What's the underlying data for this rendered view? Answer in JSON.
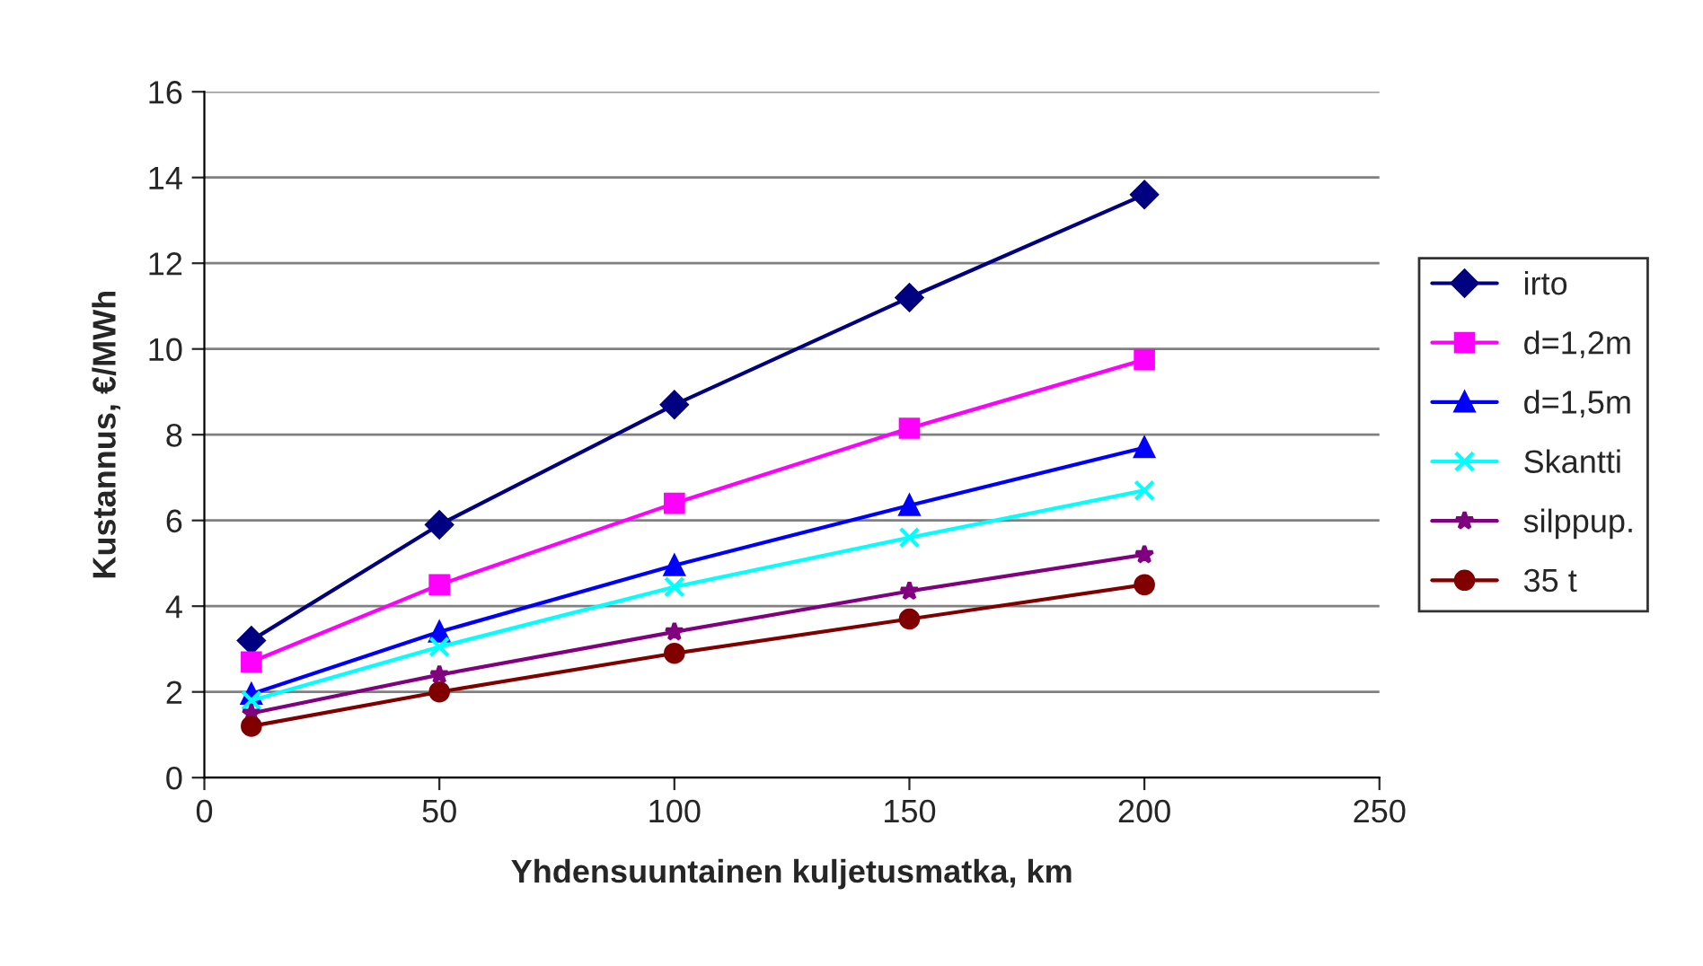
{
  "chart_data": {
    "type": "line",
    "xlabel": "Yhdensuuntainen kuljetusmatka, km",
    "ylabel": "Kustannus, €/MWh",
    "x": [
      10,
      50,
      100,
      150,
      200
    ],
    "series": [
      {
        "name": "irto",
        "color": "#000080",
        "marker": "diamond",
        "values": [
          3.2,
          5.9,
          8.7,
          11.2,
          13.6
        ]
      },
      {
        "name": "d=1,2m",
        "color": "#ff00ff",
        "marker": "square",
        "values": [
          2.7,
          4.5,
          6.4,
          8.15,
          9.75
        ]
      },
      {
        "name": "d=1,5m",
        "color": "#0000ff",
        "marker": "triangle",
        "values": [
          1.95,
          3.4,
          4.95,
          6.35,
          7.7
        ]
      },
      {
        "name": "Skantti",
        "color": "#00ffff",
        "marker": "cross",
        "values": [
          1.8,
          3.05,
          4.45,
          5.6,
          6.7
        ]
      },
      {
        "name": "silppup.",
        "color": "#800080",
        "marker": "star",
        "values": [
          1.5,
          2.4,
          3.4,
          4.35,
          5.2
        ]
      },
      {
        "name": "35 t",
        "color": "#800000",
        "marker": "circle",
        "values": [
          1.2,
          2.0,
          2.9,
          3.7,
          4.5
        ]
      }
    ],
    "xlim": [
      0,
      250
    ],
    "xticks": [
      0,
      50,
      100,
      150,
      200,
      250
    ],
    "ylim": [
      0,
      16
    ],
    "yticks": [
      0,
      2,
      4,
      6,
      8,
      10,
      12,
      14,
      16
    ],
    "grid": "y",
    "legend": "right",
    "line_style": "solid"
  }
}
